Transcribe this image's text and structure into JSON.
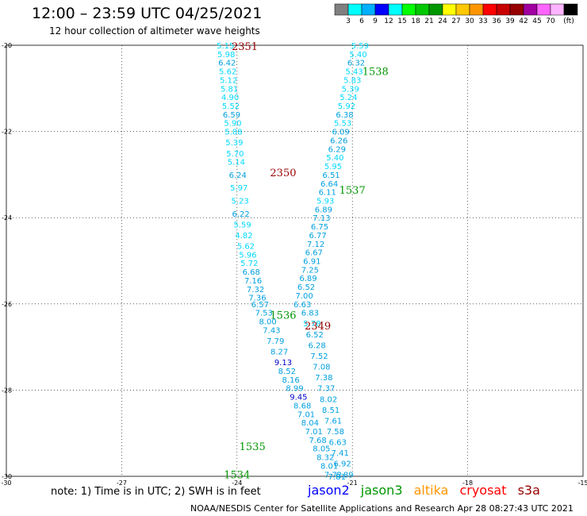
{
  "header": {
    "title": "12:00 – 23:59 UTC 04/25/2021",
    "subtitle": "12 hour collection of altimeter wave heights"
  },
  "color_scale": {
    "colors": [
      "#808080",
      "#00ffff",
      "#00b0ff",
      "#0000ff",
      "#00ffff",
      "#00ff00",
      "#00c800",
      "#009600",
      "#ffff00",
      "#ffc800",
      "#ff9600",
      "#ff0000",
      "#c80000",
      "#960000",
      "#a000a0",
      "#ff64ff",
      "#ffb4ff",
      "#000000"
    ],
    "ticks": [
      "3",
      "6",
      "9",
      "12",
      "15",
      "18",
      "21",
      "24",
      "27",
      "30",
      "33",
      "36",
      "39",
      "42",
      "45",
      "70",
      "(ft)"
    ]
  },
  "footer": {
    "note": "note: 1) Time is in UTC; 2) SWH is in feet",
    "credit": "NOAA/NESDIS Center for Satellite Applications and Research     Apr 28 08:27:43 UTC 2021",
    "legend": [
      {
        "label": "jason2",
        "color": "#0000ff"
      },
      {
        "label": "jason3",
        "color": "#009600"
      },
      {
        "label": "altika",
        "color": "#ff9600"
      },
      {
        "label": "cryosat",
        "color": "#ff0000"
      },
      {
        "label": "s3a",
        "color": "#960000"
      }
    ]
  },
  "chart_data": {
    "type": "scatter",
    "xlim": [
      -30,
      -15
    ],
    "ylim": [
      -30,
      -20
    ],
    "x_ticks": [
      -30,
      -27,
      -24,
      -21,
      -18,
      -15
    ],
    "y_ticks": [
      -20,
      -22,
      -24,
      -26,
      -28,
      -30
    ],
    "grid": true,
    "tracks": [
      {
        "label": "2351",
        "label_color": "#960000",
        "label_pos": [
          -23.8,
          -20.02
        ],
        "points": [
          {
            "x": -24.3,
            "y": -20.0,
            "v": "5.15"
          },
          {
            "x": -24.28,
            "y": -20.2,
            "v": "5.98"
          },
          {
            "x": -24.26,
            "y": -20.4,
            "v": "6.42"
          },
          {
            "x": -24.24,
            "y": -20.6,
            "v": "5.62"
          },
          {
            "x": -24.22,
            "y": -20.8,
            "v": "5.12"
          },
          {
            "x": -24.2,
            "y": -21.0,
            "v": "5.81"
          },
          {
            "x": -24.18,
            "y": -21.2,
            "v": "4.90"
          },
          {
            "x": -24.16,
            "y": -21.4,
            "v": "5.52"
          },
          {
            "x": -24.14,
            "y": -21.6,
            "v": "6.59"
          },
          {
            "x": -24.11,
            "y": -21.8,
            "v": "5.90"
          },
          {
            "x": -24.09,
            "y": -22.0,
            "v": "5.88"
          },
          {
            "x": -24.07,
            "y": -22.25,
            "v": "5.39"
          },
          {
            "x": -24.05,
            "y": -22.5,
            "v": "5.70"
          },
          {
            "x": -24.02,
            "y": -22.7,
            "v": "5.14"
          },
          {
            "x": -23.98,
            "y": -23.0,
            "v": "6.24"
          },
          {
            "x": -23.95,
            "y": -23.3,
            "v": "5.97"
          },
          {
            "x": -23.92,
            "y": -23.6,
            "v": "5.23"
          },
          {
            "x": -23.9,
            "y": -23.9,
            "v": "6.22"
          },
          {
            "x": -23.86,
            "y": -24.15,
            "v": "5.59"
          },
          {
            "x": -23.82,
            "y": -24.4,
            "v": "4.82"
          },
          {
            "x": -23.77,
            "y": -24.65,
            "v": "5.62"
          },
          {
            "x": -23.72,
            "y": -24.85,
            "v": "5.96"
          },
          {
            "x": -23.68,
            "y": -25.05,
            "v": "5.72"
          },
          {
            "x": -23.63,
            "y": -25.25,
            "v": "6.68"
          },
          {
            "x": -23.58,
            "y": -25.45,
            "v": "7.16"
          },
          {
            "x": -23.52,
            "y": -25.65,
            "v": "7.32"
          },
          {
            "x": -23.47,
            "y": -25.85,
            "v": "7.36"
          }
        ]
      },
      {
        "label": "2350",
        "label_color": "#960000",
        "label_pos": [
          -22.8,
          -22.95
        ],
        "points": [
          {
            "x": -23.4,
            "y": -26.0,
            "v": "6.57"
          },
          {
            "x": -23.3,
            "y": -26.2,
            "v": "7.53"
          },
          {
            "x": -23.2,
            "y": -26.4,
            "v": "8.00"
          },
          {
            "x": -23.1,
            "y": -26.6,
            "v": "7.43"
          },
          {
            "x": -23.0,
            "y": -26.85,
            "v": "7.79"
          },
          {
            "x": -22.9,
            "y": -27.1,
            "v": "8.27"
          },
          {
            "x": -22.8,
            "y": -27.35,
            "v": "9.13"
          },
          {
            "x": -22.7,
            "y": -27.55,
            "v": "8.52"
          },
          {
            "x": -22.6,
            "y": -27.75,
            "v": "8.16"
          },
          {
            "x": -22.5,
            "y": -27.95,
            "v": "8.99"
          },
          {
            "x": -22.4,
            "y": -28.15,
            "v": "9.45"
          },
          {
            "x": -22.3,
            "y": -28.35,
            "v": "8.68"
          },
          {
            "x": -22.2,
            "y": -28.55,
            "v": "7.01"
          },
          {
            "x": -22.1,
            "y": -28.75,
            "v": "8.04"
          },
          {
            "x": -22.0,
            "y": -28.95,
            "v": "7.01"
          },
          {
            "x": -21.9,
            "y": -29.15,
            "v": "7.68"
          },
          {
            "x": -21.8,
            "y": -29.35,
            "v": "8.05"
          },
          {
            "x": -21.7,
            "y": -29.55,
            "v": "8.32"
          },
          {
            "x": -21.6,
            "y": -29.75,
            "v": "8.01"
          },
          {
            "x": -21.5,
            "y": -29.95,
            "v": "7.72"
          },
          {
            "x": -21.4,
            "y": -30.0,
            "v": "7.81"
          }
        ]
      },
      {
        "label": "2349",
        "label_color": "#960000",
        "label_pos": [
          -21.9,
          -26.5
        ],
        "points": [
          {
            "x": -22.1,
            "y": -26.2,
            "v": "6.83"
          },
          {
            "x": -22.05,
            "y": -26.45,
            "v": "5.78"
          },
          {
            "x": -21.98,
            "y": -26.7,
            "v": "6.52"
          },
          {
            "x": -21.92,
            "y": -26.95,
            "v": "6.28"
          },
          {
            "x": -21.86,
            "y": -27.2,
            "v": "7.52"
          },
          {
            "x": -21.8,
            "y": -27.45,
            "v": "7.08"
          },
          {
            "x": -21.74,
            "y": -27.7,
            "v": "7.38"
          },
          {
            "x": -21.68,
            "y": -27.95,
            "v": "7.37"
          },
          {
            "x": -21.62,
            "y": -28.2,
            "v": "8.02"
          },
          {
            "x": -21.56,
            "y": -28.45,
            "v": "8.51"
          },
          {
            "x": -21.5,
            "y": -28.7,
            "v": "7.61"
          },
          {
            "x": -21.44,
            "y": -28.95,
            "v": "7.58"
          },
          {
            "x": -21.38,
            "y": -29.2,
            "v": "6.63"
          },
          {
            "x": -21.32,
            "y": -29.45,
            "v": "7.41"
          },
          {
            "x": -21.26,
            "y": -29.7,
            "v": "6.92"
          },
          {
            "x": -21.2,
            "y": -29.95,
            "v": "6.89"
          }
        ]
      },
      {
        "label": "1538",
        "label_color": "#009600",
        "label_pos": [
          -20.4,
          -20.6
        ],
        "points": [
          {
            "x": -20.8,
            "y": -20.0,
            "v": "5.59"
          },
          {
            "x": -20.85,
            "y": -20.2,
            "v": "5.40"
          },
          {
            "x": -20.9,
            "y": -20.4,
            "v": "6.32"
          },
          {
            "x": -20.95,
            "y": -20.6,
            "v": "5.43"
          },
          {
            "x": -21.0,
            "y": -20.8,
            "v": "5.83"
          },
          {
            "x": -21.05,
            "y": -21.0,
            "v": "5.39"
          },
          {
            "x": -21.1,
            "y": -21.2,
            "v": "5.24"
          },
          {
            "x": -21.15,
            "y": -21.4,
            "v": "5.92"
          },
          {
            "x": -21.2,
            "y": -21.6,
            "v": "6.38"
          },
          {
            "x": -21.25,
            "y": -21.8,
            "v": "5.53"
          },
          {
            "x": -21.3,
            "y": -22.0,
            "v": "6.09"
          },
          {
            "x": -21.35,
            "y": -22.2,
            "v": "6.26"
          },
          {
            "x": -21.4,
            "y": -22.4,
            "v": "6.29"
          },
          {
            "x": -21.45,
            "y": -22.6,
            "v": "5.40"
          },
          {
            "x": -21.5,
            "y": -22.8,
            "v": "5.95"
          },
          {
            "x": -21.55,
            "y": -23.0,
            "v": "6.51"
          }
        ]
      },
      {
        "label": "1537",
        "label_color": "#009600",
        "label_pos": [
          -21.0,
          -23.35
        ],
        "points": [
          {
            "x": -21.6,
            "y": -23.2,
            "v": "6.64"
          },
          {
            "x": -21.65,
            "y": -23.4,
            "v": "6.11"
          },
          {
            "x": -21.7,
            "y": -23.6,
            "v": "5.93"
          },
          {
            "x": -21.75,
            "y": -23.8,
            "v": "6.89"
          },
          {
            "x": -21.8,
            "y": -24.0,
            "v": "7.13"
          },
          {
            "x": -21.85,
            "y": -24.2,
            "v": "6.75"
          },
          {
            "x": -21.9,
            "y": -24.4,
            "v": "6.77"
          },
          {
            "x": -21.95,
            "y": -24.6,
            "v": "7.12"
          },
          {
            "x": -22.0,
            "y": -24.8,
            "v": "6.67"
          },
          {
            "x": -22.05,
            "y": -25.0,
            "v": "6.91"
          },
          {
            "x": -22.1,
            "y": -25.2,
            "v": "7.25"
          },
          {
            "x": -22.15,
            "y": -25.4,
            "v": "6.89"
          },
          {
            "x": -22.2,
            "y": -25.6,
            "v": "6.52"
          },
          {
            "x": -22.25,
            "y": -25.8,
            "v": "7.00"
          },
          {
            "x": -22.3,
            "y": -26.0,
            "v": "6.63"
          }
        ]
      },
      {
        "label": "1536",
        "label_color": "#009600",
        "label_pos": [
          -22.8,
          -26.25
        ],
        "points": []
      },
      {
        "label": "1535",
        "label_color": "#009600",
        "label_pos": [
          -23.6,
          -29.3
        ],
        "points": []
      },
      {
        "label": "1534",
        "label_color": "#009600",
        "label_pos": [
          -24.0,
          -29.95
        ],
        "points": []
      }
    ]
  }
}
